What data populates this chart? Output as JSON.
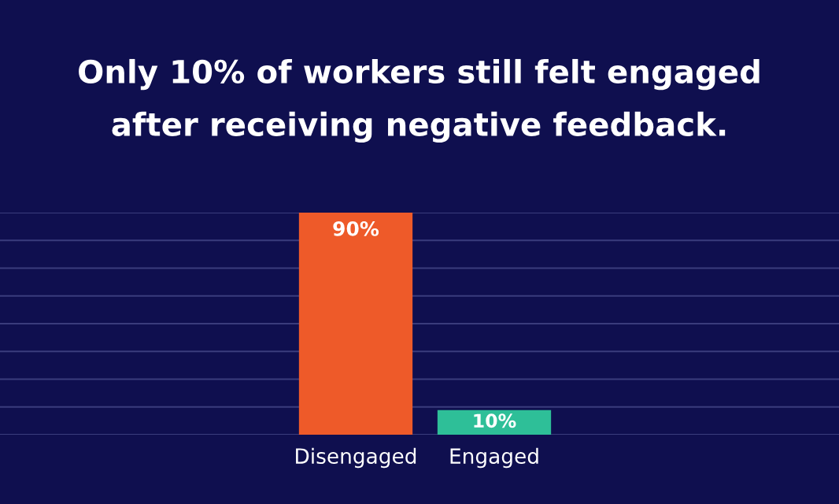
{
  "chart_data": {
    "type": "bar",
    "title": "Only 10% of workers still felt engaged\nafter receiving negative feedback.",
    "categories": [
      "Disengaged",
      "Engaged"
    ],
    "values": [
      90,
      10
    ],
    "colors": [
      "#ee5a29",
      "#2ebf98"
    ],
    "value_labels": [
      "90%",
      "10%"
    ],
    "ylim": [
      0,
      90
    ],
    "yticks": [
      {
        "value": 0,
        "label": null
      },
      {
        "value": 11.25,
        "label": null
      },
      {
        "value": 22.5,
        "label": null
      },
      {
        "value": 33.75,
        "label": null
      },
      {
        "value": 45,
        "label": null
      },
      {
        "value": 56.25,
        "label": null
      },
      {
        "value": 67.5,
        "label": null
      },
      {
        "value": 78.75,
        "label": null
      },
      {
        "value": 90,
        "label": null
      }
    ],
    "grid": "y",
    "tick_labels": "x"
  }
}
